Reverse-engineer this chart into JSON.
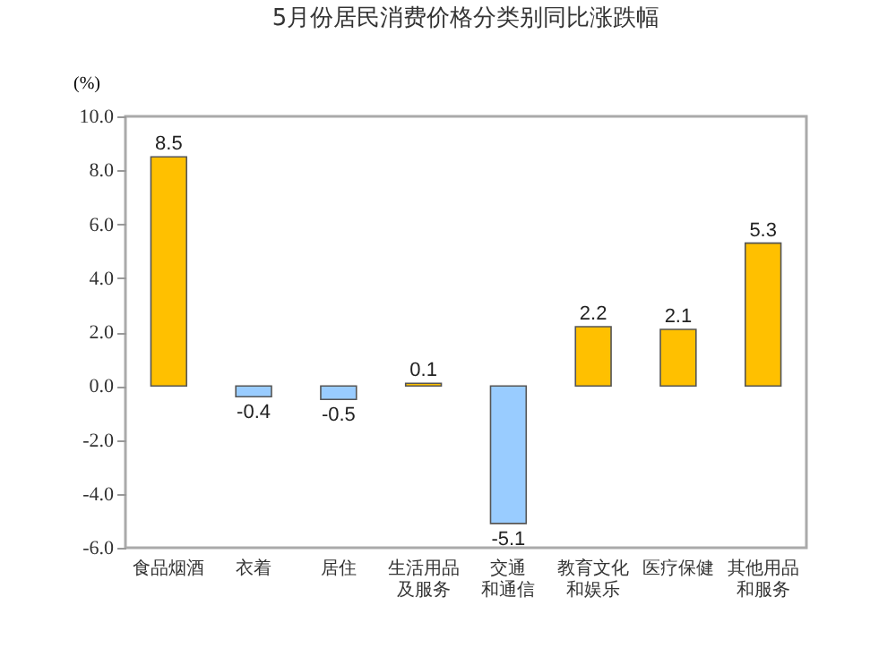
{
  "chart_data": {
    "type": "bar",
    "title": "5月份居民消费价格分类别同比涨跌幅",
    "ylabel": "(%)",
    "categories": [
      "食品烟酒",
      "衣着",
      "居住",
      "生活用品及服务",
      "交通和通信",
      "教育文化和娱乐",
      "医疗保健",
      "其他用品和服务"
    ],
    "values": [
      8.5,
      -0.4,
      -0.5,
      0.1,
      -5.1,
      2.2,
      2.1,
      5.3
    ],
    "colors": [
      "#ffc000",
      "#99ccff",
      "#99ccff",
      "#ffc000",
      "#99ccff",
      "#ffc000",
      "#ffc000",
      "#ffc000"
    ],
    "ylim": [
      -6,
      10
    ],
    "yticks": [
      {
        "value": -6,
        "label": "-6.0"
      },
      {
        "value": -4,
        "label": "-4.0"
      },
      {
        "value": -2,
        "label": "-2.0"
      },
      {
        "value": 0,
        "label": "0.0"
      },
      {
        "value": 2,
        "label": "2.0"
      },
      {
        "value": 4,
        "label": "4.0"
      },
      {
        "value": 6,
        "label": "6.0"
      },
      {
        "value": 8,
        "label": "8.0"
      },
      {
        "value": 10,
        "label": "10.0"
      }
    ],
    "data_labels": true
  }
}
